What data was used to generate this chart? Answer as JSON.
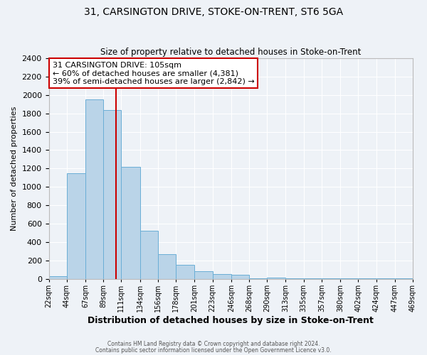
{
  "title": "31, CARSINGTON DRIVE, STOKE-ON-TRENT, ST6 5GA",
  "subtitle": "Size of property relative to detached houses in Stoke-on-Trent",
  "xlabel": "Distribution of detached houses by size in Stoke-on-Trent",
  "ylabel": "Number of detached properties",
  "bin_edges": [
    22,
    44,
    67,
    89,
    111,
    134,
    156,
    178,
    201,
    223,
    246,
    268,
    290,
    313,
    335,
    357,
    380,
    402,
    424,
    447,
    469
  ],
  "bin_labels": [
    "22sqm",
    "44sqm",
    "67sqm",
    "89sqm",
    "111sqm",
    "134sqm",
    "156sqm",
    "178sqm",
    "201sqm",
    "223sqm",
    "246sqm",
    "268sqm",
    "290sqm",
    "313sqm",
    "335sqm",
    "357sqm",
    "380sqm",
    "402sqm",
    "424sqm",
    "447sqm",
    "469sqm"
  ],
  "counts": [
    30,
    1150,
    1950,
    1840,
    1220,
    520,
    265,
    150,
    80,
    50,
    40,
    5,
    10,
    5,
    3,
    2,
    2,
    1,
    1,
    1
  ],
  "bar_color": "#bad4e8",
  "bar_edge_color": "#6aaed6",
  "vline_x": 105,
  "vline_color": "#cc0000",
  "annotation_line1": "31 CARSINGTON DRIVE: 105sqm",
  "annotation_line2": "← 60% of detached houses are smaller (4,381)",
  "annotation_line3": "39% of semi-detached houses are larger (2,842) →",
  "annotation_box_color": "#ffffff",
  "annotation_box_edge_color": "#cc0000",
  "ylim": [
    0,
    2400
  ],
  "yticks": [
    0,
    200,
    400,
    600,
    800,
    1000,
    1200,
    1400,
    1600,
    1800,
    2000,
    2200,
    2400
  ],
  "footer1": "Contains HM Land Registry data © Crown copyright and database right 2024.",
  "footer2": "Contains public sector information licensed under the Open Government Licence v3.0.",
  "bg_color": "#eef2f7",
  "grid_color": "#ffffff",
  "title_fontsize": 10,
  "subtitle_fontsize": 8.5,
  "xlabel_fontsize": 9,
  "xlabel_fontweight": "bold"
}
